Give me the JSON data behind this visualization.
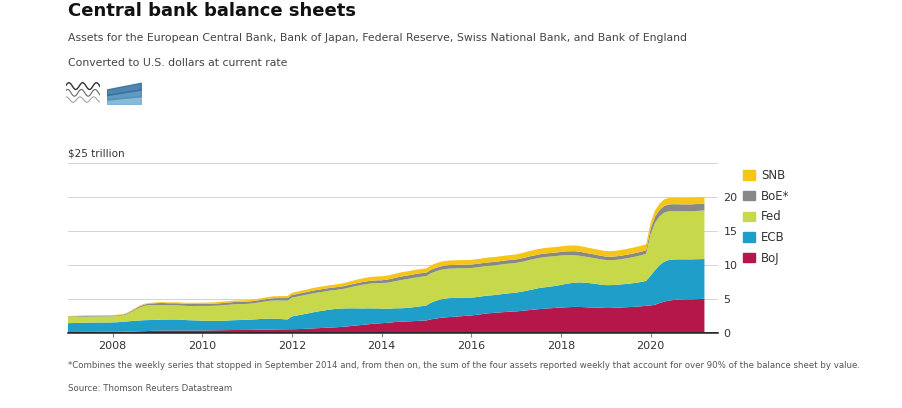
{
  "title": "Central bank balance sheets",
  "subtitle": "Assets for the European Central Bank, Bank of Japan, Federal Reserve, Swiss National Bank, and Bank of England",
  "note1": "Converted to U.S. dollars at current rate",
  "ylabel": "$25 trillion",
  "footnote": "*Combines the weekly series that stopped in September 2014 and, from then on, the sum of the four assets reported weekly that account for over 90% of the balance sheet by value.",
  "source": "Source: Thomson Reuters Datastream",
  "colors": {
    "BoJ": "#b5174a",
    "ECB": "#1f9ec9",
    "Fed": "#c8d84b",
    "BoE": "#888888",
    "SNB": "#f5c518"
  },
  "background_color": "#ffffff",
  "years": [
    2007.0,
    2007.1,
    2007.2,
    2007.3,
    2007.4,
    2007.5,
    2007.6,
    2007.7,
    2007.8,
    2007.9,
    2008.0,
    2008.1,
    2008.2,
    2008.3,
    2008.4,
    2008.5,
    2008.6,
    2008.7,
    2008.8,
    2008.9,
    2009.0,
    2009.1,
    2009.2,
    2009.3,
    2009.4,
    2009.5,
    2009.6,
    2009.7,
    2009.8,
    2009.9,
    2010.0,
    2010.1,
    2010.2,
    2010.3,
    2010.4,
    2010.5,
    2010.6,
    2010.7,
    2010.8,
    2010.9,
    2011.0,
    2011.1,
    2011.2,
    2011.3,
    2011.4,
    2011.5,
    2011.6,
    2011.7,
    2011.8,
    2011.9,
    2012.0,
    2012.1,
    2012.2,
    2012.3,
    2012.4,
    2012.5,
    2012.6,
    2012.7,
    2012.8,
    2012.9,
    2013.0,
    2013.1,
    2013.2,
    2013.3,
    2013.4,
    2013.5,
    2013.6,
    2013.7,
    2013.8,
    2013.9,
    2014.0,
    2014.1,
    2014.2,
    2014.3,
    2014.4,
    2014.5,
    2014.6,
    2014.7,
    2014.8,
    2014.9,
    2015.0,
    2015.1,
    2015.2,
    2015.3,
    2015.4,
    2015.5,
    2015.6,
    2015.7,
    2015.8,
    2015.9,
    2016.0,
    2016.1,
    2016.2,
    2016.3,
    2016.4,
    2016.5,
    2016.6,
    2016.7,
    2016.8,
    2016.9,
    2017.0,
    2017.1,
    2017.2,
    2017.3,
    2017.4,
    2017.5,
    2017.6,
    2017.7,
    2017.8,
    2017.9,
    2018.0,
    2018.1,
    2018.2,
    2018.3,
    2018.4,
    2018.5,
    2018.6,
    2018.7,
    2018.8,
    2018.9,
    2019.0,
    2019.1,
    2019.2,
    2019.3,
    2019.4,
    2019.5,
    2019.6,
    2019.7,
    2019.8,
    2019.9,
    2020.0,
    2020.1,
    2020.2,
    2020.3,
    2020.4,
    2020.5,
    2020.6,
    2020.7,
    2020.8,
    2020.9,
    2021.0,
    2021.1,
    2021.2
  ],
  "BoJ": [
    0.08,
    0.08,
    0.08,
    0.09,
    0.09,
    0.09,
    0.09,
    0.1,
    0.1,
    0.1,
    0.1,
    0.1,
    0.11,
    0.12,
    0.13,
    0.15,
    0.18,
    0.2,
    0.22,
    0.25,
    0.28,
    0.29,
    0.29,
    0.3,
    0.3,
    0.3,
    0.3,
    0.3,
    0.3,
    0.3,
    0.3,
    0.31,
    0.32,
    0.33,
    0.34,
    0.35,
    0.36,
    0.37,
    0.37,
    0.38,
    0.38,
    0.39,
    0.4,
    0.42,
    0.43,
    0.44,
    0.45,
    0.46,
    0.47,
    0.48,
    0.48,
    0.5,
    0.52,
    0.55,
    0.58,
    0.62,
    0.65,
    0.68,
    0.72,
    0.75,
    0.78,
    0.82,
    0.88,
    0.95,
    1.02,
    1.08,
    1.15,
    1.22,
    1.28,
    1.34,
    1.38,
    1.42,
    1.48,
    1.55,
    1.58,
    1.62,
    1.65,
    1.68,
    1.72,
    1.75,
    1.78,
    1.95,
    2.05,
    2.15,
    2.22,
    2.28,
    2.32,
    2.38,
    2.42,
    2.48,
    2.52,
    2.6,
    2.68,
    2.78,
    2.85,
    2.9,
    2.95,
    3.0,
    3.05,
    3.08,
    3.12,
    3.18,
    3.25,
    3.32,
    3.38,
    3.45,
    3.5,
    3.55,
    3.6,
    3.65,
    3.68,
    3.72,
    3.75,
    3.78,
    3.78,
    3.75,
    3.72,
    3.7,
    3.68,
    3.65,
    3.62,
    3.62,
    3.65,
    3.68,
    3.72,
    3.75,
    3.78,
    3.82,
    3.88,
    3.95,
    4.0,
    4.12,
    4.35,
    4.55,
    4.7,
    4.8,
    4.85,
    4.88,
    4.9,
    4.9,
    4.92,
    4.95,
    5.0
  ],
  "ECB": [
    1.3,
    1.32,
    1.33,
    1.35,
    1.36,
    1.38,
    1.38,
    1.38,
    1.38,
    1.38,
    1.4,
    1.42,
    1.45,
    1.5,
    1.55,
    1.58,
    1.6,
    1.62,
    1.62,
    1.6,
    1.6,
    1.62,
    1.62,
    1.62,
    1.62,
    1.6,
    1.55,
    1.52,
    1.5,
    1.48,
    1.45,
    1.42,
    1.4,
    1.38,
    1.38,
    1.4,
    1.42,
    1.45,
    1.47,
    1.48,
    1.5,
    1.52,
    1.55,
    1.58,
    1.6,
    1.62,
    1.6,
    1.55,
    1.5,
    1.45,
    1.9,
    2.0,
    2.1,
    2.2,
    2.3,
    2.4,
    2.48,
    2.55,
    2.62,
    2.68,
    2.72,
    2.72,
    2.68,
    2.62,
    2.55,
    2.48,
    2.4,
    2.35,
    2.28,
    2.22,
    2.15,
    2.1,
    2.05,
    2.02,
    2.0,
    1.98,
    2.0,
    2.05,
    2.1,
    2.15,
    2.22,
    2.45,
    2.6,
    2.72,
    2.78,
    2.8,
    2.78,
    2.75,
    2.72,
    2.68,
    2.62,
    2.62,
    2.62,
    2.62,
    2.62,
    2.62,
    2.65,
    2.68,
    2.72,
    2.75,
    2.78,
    2.82,
    2.88,
    2.95,
    3.02,
    3.1,
    3.15,
    3.18,
    3.22,
    3.25,
    3.35,
    3.45,
    3.52,
    3.58,
    3.62,
    3.62,
    3.6,
    3.55,
    3.48,
    3.42,
    3.38,
    3.38,
    3.38,
    3.4,
    3.42,
    3.45,
    3.5,
    3.55,
    3.6,
    3.68,
    4.4,
    5.1,
    5.6,
    5.9,
    6.0,
    5.98,
    5.95,
    5.92,
    5.9,
    5.9,
    5.9,
    5.88,
    5.85
  ],
  "Fed": [
    0.88,
    0.88,
    0.88,
    0.89,
    0.89,
    0.89,
    0.89,
    0.9,
    0.9,
    0.9,
    0.9,
    0.92,
    0.95,
    1.0,
    1.3,
    1.6,
    1.9,
    2.1,
    2.2,
    2.2,
    2.18,
    2.15,
    2.12,
    2.1,
    2.1,
    2.1,
    2.1,
    2.1,
    2.12,
    2.15,
    2.18,
    2.2,
    2.22,
    2.25,
    2.28,
    2.3,
    2.32,
    2.35,
    2.35,
    2.35,
    2.35,
    2.38,
    2.42,
    2.48,
    2.55,
    2.62,
    2.68,
    2.72,
    2.75,
    2.78,
    2.78,
    2.78,
    2.8,
    2.8,
    2.8,
    2.8,
    2.8,
    2.8,
    2.8,
    2.8,
    2.8,
    2.85,
    2.95,
    3.1,
    3.25,
    3.4,
    3.52,
    3.62,
    3.7,
    3.75,
    3.78,
    3.82,
    3.9,
    4.0,
    4.12,
    4.22,
    4.28,
    4.32,
    4.35,
    4.35,
    4.35,
    4.35,
    4.35,
    4.35,
    4.35,
    4.35,
    4.35,
    4.35,
    4.35,
    4.35,
    4.38,
    4.38,
    4.38,
    4.38,
    4.38,
    4.38,
    4.38,
    4.38,
    4.38,
    4.38,
    4.38,
    4.4,
    4.42,
    4.45,
    4.45,
    4.45,
    4.45,
    4.45,
    4.42,
    4.4,
    4.35,
    4.25,
    4.15,
    4.05,
    3.95,
    3.88,
    3.82,
    3.78,
    3.75,
    3.72,
    3.7,
    3.68,
    3.68,
    3.7,
    3.75,
    3.8,
    3.85,
    3.9,
    3.95,
    4.0,
    6.1,
    7.0,
    7.2,
    7.25,
    7.2,
    7.15,
    7.12,
    7.1,
    7.1,
    7.1,
    7.12,
    7.15,
    7.18
  ],
  "BoE": [
    0.1,
    0.1,
    0.1,
    0.1,
    0.1,
    0.1,
    0.1,
    0.1,
    0.1,
    0.1,
    0.1,
    0.1,
    0.1,
    0.12,
    0.12,
    0.15,
    0.18,
    0.2,
    0.22,
    0.25,
    0.28,
    0.3,
    0.3,
    0.3,
    0.3,
    0.3,
    0.3,
    0.3,
    0.3,
    0.3,
    0.3,
    0.3,
    0.3,
    0.3,
    0.32,
    0.32,
    0.33,
    0.33,
    0.33,
    0.33,
    0.33,
    0.33,
    0.33,
    0.33,
    0.33,
    0.34,
    0.35,
    0.36,
    0.37,
    0.38,
    0.38,
    0.38,
    0.38,
    0.38,
    0.4,
    0.4,
    0.4,
    0.4,
    0.4,
    0.4,
    0.4,
    0.4,
    0.4,
    0.4,
    0.4,
    0.4,
    0.4,
    0.4,
    0.4,
    0.4,
    0.4,
    0.45,
    0.48,
    0.5,
    0.52,
    0.52,
    0.52,
    0.52,
    0.52,
    0.52,
    0.52,
    0.52,
    0.52,
    0.52,
    0.52,
    0.52,
    0.52,
    0.52,
    0.52,
    0.52,
    0.52,
    0.52,
    0.52,
    0.52,
    0.52,
    0.52,
    0.52,
    0.52,
    0.52,
    0.52,
    0.52,
    0.52,
    0.52,
    0.52,
    0.52,
    0.52,
    0.52,
    0.52,
    0.52,
    0.52,
    0.52,
    0.55,
    0.58,
    0.6,
    0.6,
    0.58,
    0.56,
    0.55,
    0.54,
    0.53,
    0.52,
    0.52,
    0.52,
    0.52,
    0.52,
    0.52,
    0.52,
    0.52,
    0.52,
    0.52,
    0.8,
    0.9,
    0.95,
    0.98,
    1.0,
    1.02,
    1.02,
    1.02,
    1.02,
    1.02,
    1.02,
    1.02,
    1.02
  ],
  "SNB": [
    0.08,
    0.08,
    0.08,
    0.08,
    0.09,
    0.09,
    0.09,
    0.09,
    0.09,
    0.09,
    0.09,
    0.09,
    0.09,
    0.1,
    0.1,
    0.1,
    0.1,
    0.1,
    0.1,
    0.1,
    0.12,
    0.13,
    0.13,
    0.13,
    0.14,
    0.15,
    0.16,
    0.17,
    0.17,
    0.17,
    0.18,
    0.19,
    0.2,
    0.21,
    0.21,
    0.22,
    0.22,
    0.22,
    0.22,
    0.22,
    0.22,
    0.22,
    0.23,
    0.24,
    0.25,
    0.26,
    0.27,
    0.28,
    0.29,
    0.3,
    0.32,
    0.34,
    0.36,
    0.37,
    0.38,
    0.39,
    0.4,
    0.4,
    0.4,
    0.4,
    0.42,
    0.44,
    0.46,
    0.48,
    0.5,
    0.52,
    0.54,
    0.56,
    0.57,
    0.58,
    0.58,
    0.59,
    0.6,
    0.61,
    0.62,
    0.62,
    0.62,
    0.62,
    0.62,
    0.62,
    0.62,
    0.64,
    0.66,
    0.67,
    0.68,
    0.68,
    0.68,
    0.68,
    0.68,
    0.68,
    0.68,
    0.69,
    0.7,
    0.71,
    0.72,
    0.72,
    0.72,
    0.72,
    0.72,
    0.72,
    0.74,
    0.76,
    0.78,
    0.8,
    0.81,
    0.82,
    0.82,
    0.82,
    0.82,
    0.82,
    0.82,
    0.83,
    0.84,
    0.85,
    0.85,
    0.84,
    0.83,
    0.82,
    0.82,
    0.82,
    0.82,
    0.82,
    0.83,
    0.84,
    0.85,
    0.86,
    0.87,
    0.88,
    0.88,
    0.89,
    0.9,
    0.92,
    0.94,
    0.96,
    0.97,
    0.97,
    0.97,
    0.97,
    0.97,
    0.97,
    0.97,
    0.97,
    0.97
  ]
}
